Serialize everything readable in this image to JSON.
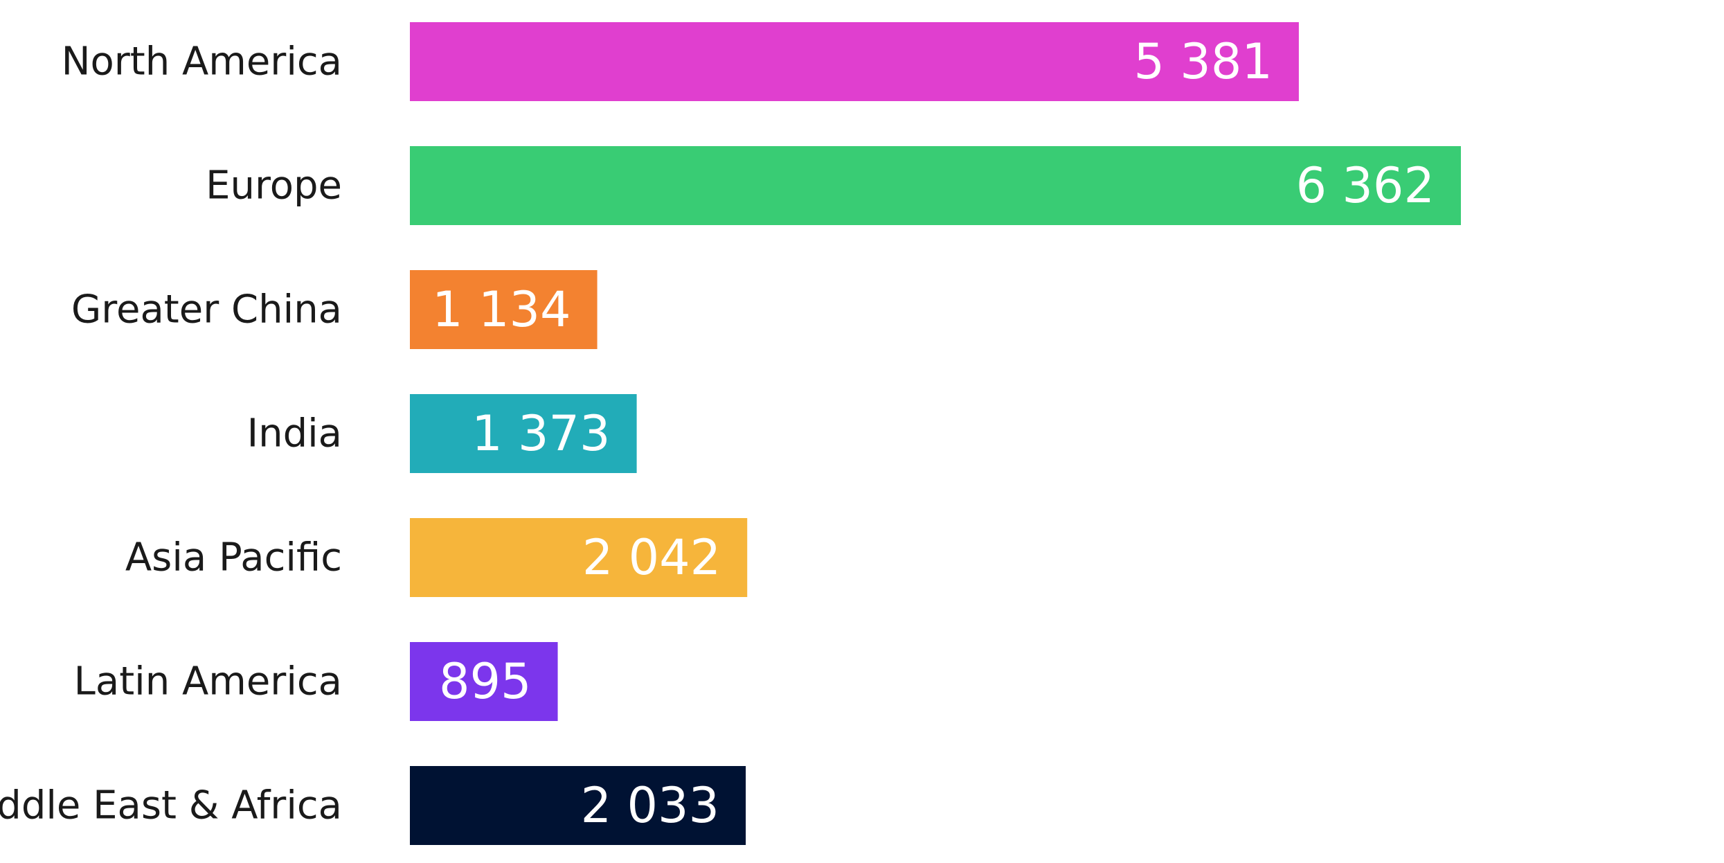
{
  "chart_data": {
    "type": "bar",
    "orientation": "horizontal",
    "categories": [
      "North America",
      "Europe",
      "Greater China",
      "India",
      "Asia Pacific",
      "Latin America",
      "Middle East & Africa"
    ],
    "values": [
      5381,
      6362,
      1134,
      1373,
      2042,
      895,
      2033
    ],
    "value_labels": [
      "5 381",
      "6 362",
      "1 134",
      "1 373",
      "2 042",
      "895",
      "2 033"
    ],
    "colors": [
      "#E03FCF",
      "#39CC74",
      "#F38230",
      "#22ACB8",
      "#F6B53B",
      "#7C36EC",
      "#001233"
    ],
    "title": "",
    "xlabel": "",
    "ylabel": "",
    "xlim": [
      0,
      6362
    ],
    "grid": false,
    "legend": "none"
  }
}
